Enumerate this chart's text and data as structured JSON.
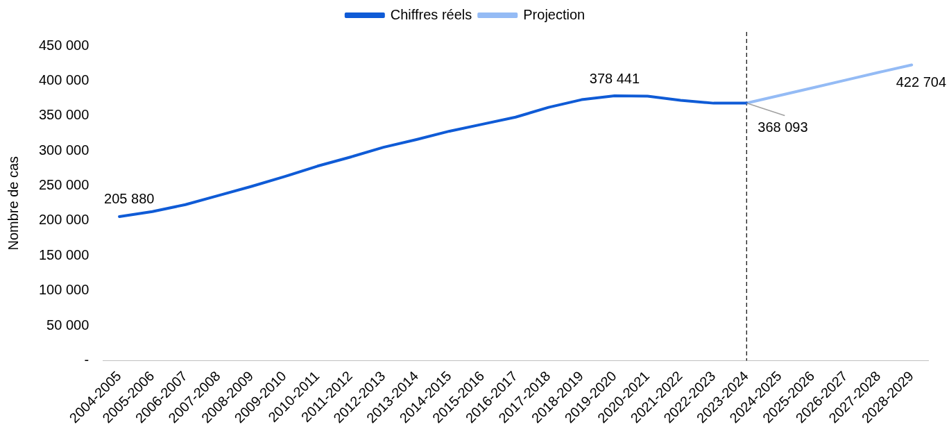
{
  "chart_data": {
    "type": "line",
    "ylabel": "Nombre de cas",
    "categories": [
      "2004-2005",
      "2005-2006",
      "2006-2007",
      "2007-2008",
      "2008-2009",
      "2009-2010",
      "2010-2011",
      "2011-2012",
      "2012-2013",
      "2013-2014",
      "2014-2015",
      "2015-2016",
      "2016-2017",
      "2017-2018",
      "2018-2019",
      "2019-2020",
      "2020-2021",
      "2021-2022",
      "2022-2023",
      "2023-2024",
      "2024-2025",
      "2025-2026",
      "2026-2027",
      "2027-2028",
      "2028-2029"
    ],
    "series": [
      {
        "name": "Chiffres réels",
        "color": "#0f5bd6",
        "values": [
          205880,
          213000,
          223000,
          236000,
          249000,
          263000,
          278000,
          291000,
          305000,
          316000,
          328000,
          338000,
          348000,
          362000,
          373000,
          378441,
          378000,
          372000,
          368000,
          368093,
          null,
          null,
          null,
          null,
          null
        ],
        "value_labels": [
          "205 880",
          null,
          null,
          null,
          null,
          null,
          null,
          null,
          null,
          null,
          null,
          null,
          null,
          null,
          null,
          "378 441",
          null,
          null,
          null,
          "368 093",
          null,
          null,
          null,
          null,
          null
        ]
      },
      {
        "name": "Projection",
        "color": "#94bbf5",
        "values": [
          null,
          null,
          null,
          null,
          null,
          null,
          null,
          null,
          null,
          null,
          null,
          null,
          null,
          null,
          null,
          null,
          null,
          null,
          null,
          368093,
          379000,
          390000,
          401000,
          412000,
          422704
        ],
        "value_labels": [
          null,
          null,
          null,
          null,
          null,
          null,
          null,
          null,
          null,
          null,
          null,
          null,
          null,
          null,
          null,
          null,
          null,
          null,
          null,
          null,
          null,
          null,
          null,
          null,
          "422 704"
        ]
      }
    ],
    "ylim": [
      0,
      450000
    ],
    "yticks": [
      {
        "value": 0,
        "label": "-"
      },
      {
        "value": 50000,
        "label": "50 000"
      },
      {
        "value": 100000,
        "label": "100 000"
      },
      {
        "value": 150000,
        "label": "150 000"
      },
      {
        "value": 200000,
        "label": "200 000"
      },
      {
        "value": 250000,
        "label": "250 000"
      },
      {
        "value": 300000,
        "label": "300 000"
      },
      {
        "value": 350000,
        "label": "350 000"
      },
      {
        "value": 400000,
        "label": "400 000"
      },
      {
        "value": 450000,
        "label": "450 000"
      }
    ],
    "ref_lines": [
      {
        "axis": "x",
        "value": "2023-2024",
        "color": "#000000",
        "line_style": "dashed"
      }
    ],
    "grid": false,
    "legend": "top",
    "marker": "none",
    "line_style": "solid"
  }
}
